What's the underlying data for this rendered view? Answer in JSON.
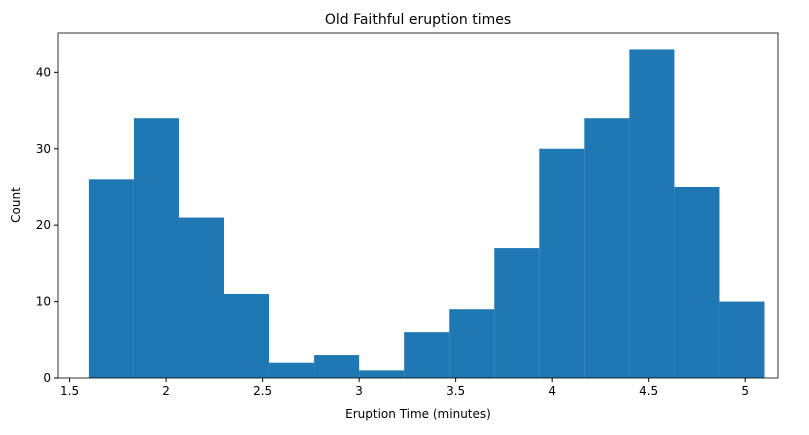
{
  "chart_data": {
    "type": "histogram",
    "title": "Old Faithful eruption times",
    "x_label": "Eruption Time (minutes)",
    "y_label": "Count",
    "bins": [
      1.6,
      1.8333,
      2.0667,
      2.3,
      2.5333,
      2.7667,
      3.0,
      3.2333,
      3.4667,
      3.7,
      3.9333,
      4.1667,
      4.4,
      4.6333,
      4.8667,
      5.1
    ],
    "values": [
      26,
      34,
      21,
      11,
      2,
      3,
      1,
      6,
      9,
      17,
      30,
      34,
      43,
      25,
      10
    ],
    "color": "#1f77b4",
    "xlim": [
      1.44,
      5.17
    ],
    "xticks": [
      1.5,
      2.0,
      2.5,
      3.0,
      3.5,
      4.0,
      4.5,
      5.0
    ],
    "ylim": [
      0,
      45.15
    ],
    "yticks": [
      0,
      10,
      20,
      30,
      40
    ]
  }
}
